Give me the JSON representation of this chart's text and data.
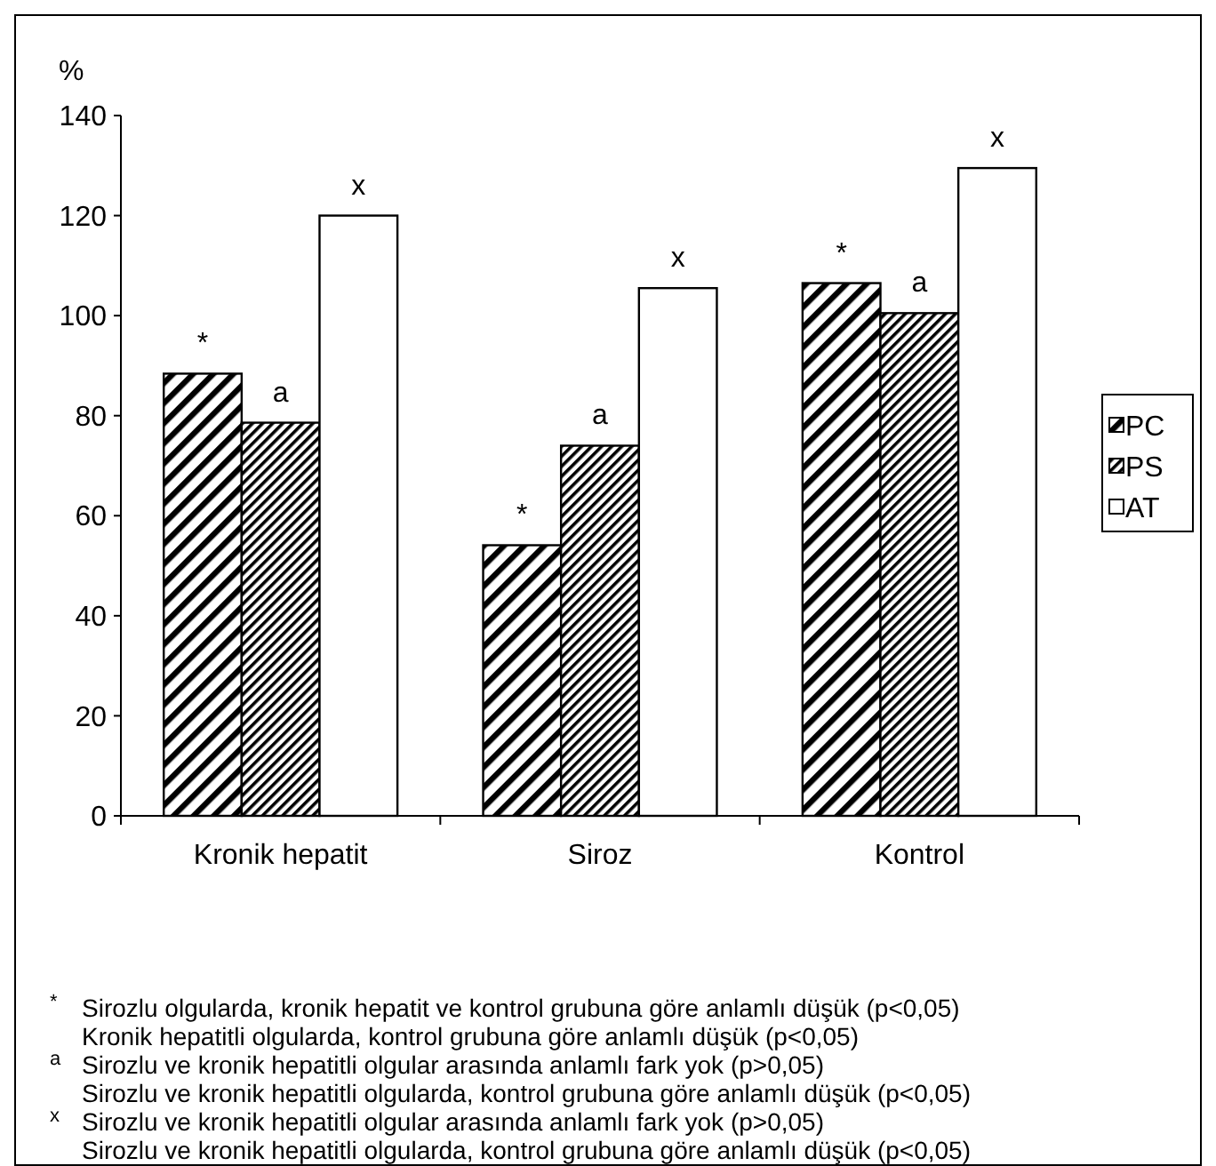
{
  "chart_data": {
    "type": "bar",
    "ylabel": "%",
    "categories": [
      "Kronik hepatit",
      "Siroz",
      "Kontrol"
    ],
    "series": [
      {
        "name": "PC",
        "color": "#000000",
        "values": [
          88.4,
          54.1,
          106.5
        ]
      },
      {
        "name": "PS",
        "color": "#000000",
        "values": [
          78.6,
          74,
          100.5
        ]
      },
      {
        "name": "AT",
        "color": "#ffffff",
        "values": [
          120,
          105.5,
          129.5
        ]
      }
    ],
    "ylim": [
      0,
      140
    ],
    "yticks": [
      0,
      20,
      40,
      60,
      80,
      100,
      120,
      140
    ],
    "grid": false,
    "legend": "right",
    "annotations": [
      "*",
      "a",
      "x",
      "*",
      "a",
      "x",
      "*",
      "a",
      "x",
      "$^{*}$ Sirozlu olgularda, kronik hepatit ve kontrol grubuna göre anlamlı düşük (p<0,05)",
      "Kronik hepatitli olgularda, kontrol grubuna göre anlamlı düşük (p<0,05)",
      "$^{a}$ Sirozlu ve kronik hepatitli olgular arasında anlamlı fark yok (p>0,05)",
      "Sirozlu ve kronik hepatitli olgularda, kontrol grubuna göre anlamlı düşük (p<0,05)",
      "$^{x}$ Sirozlu ve kronik hepatitli olgular arasında anlamlı fark yok (p>0,05)",
      "Sirozlu ve kronik hepatitli olgularda, kontrol grubuna göre anlamlı düşük (p<0,05)"
    ]
  }
}
